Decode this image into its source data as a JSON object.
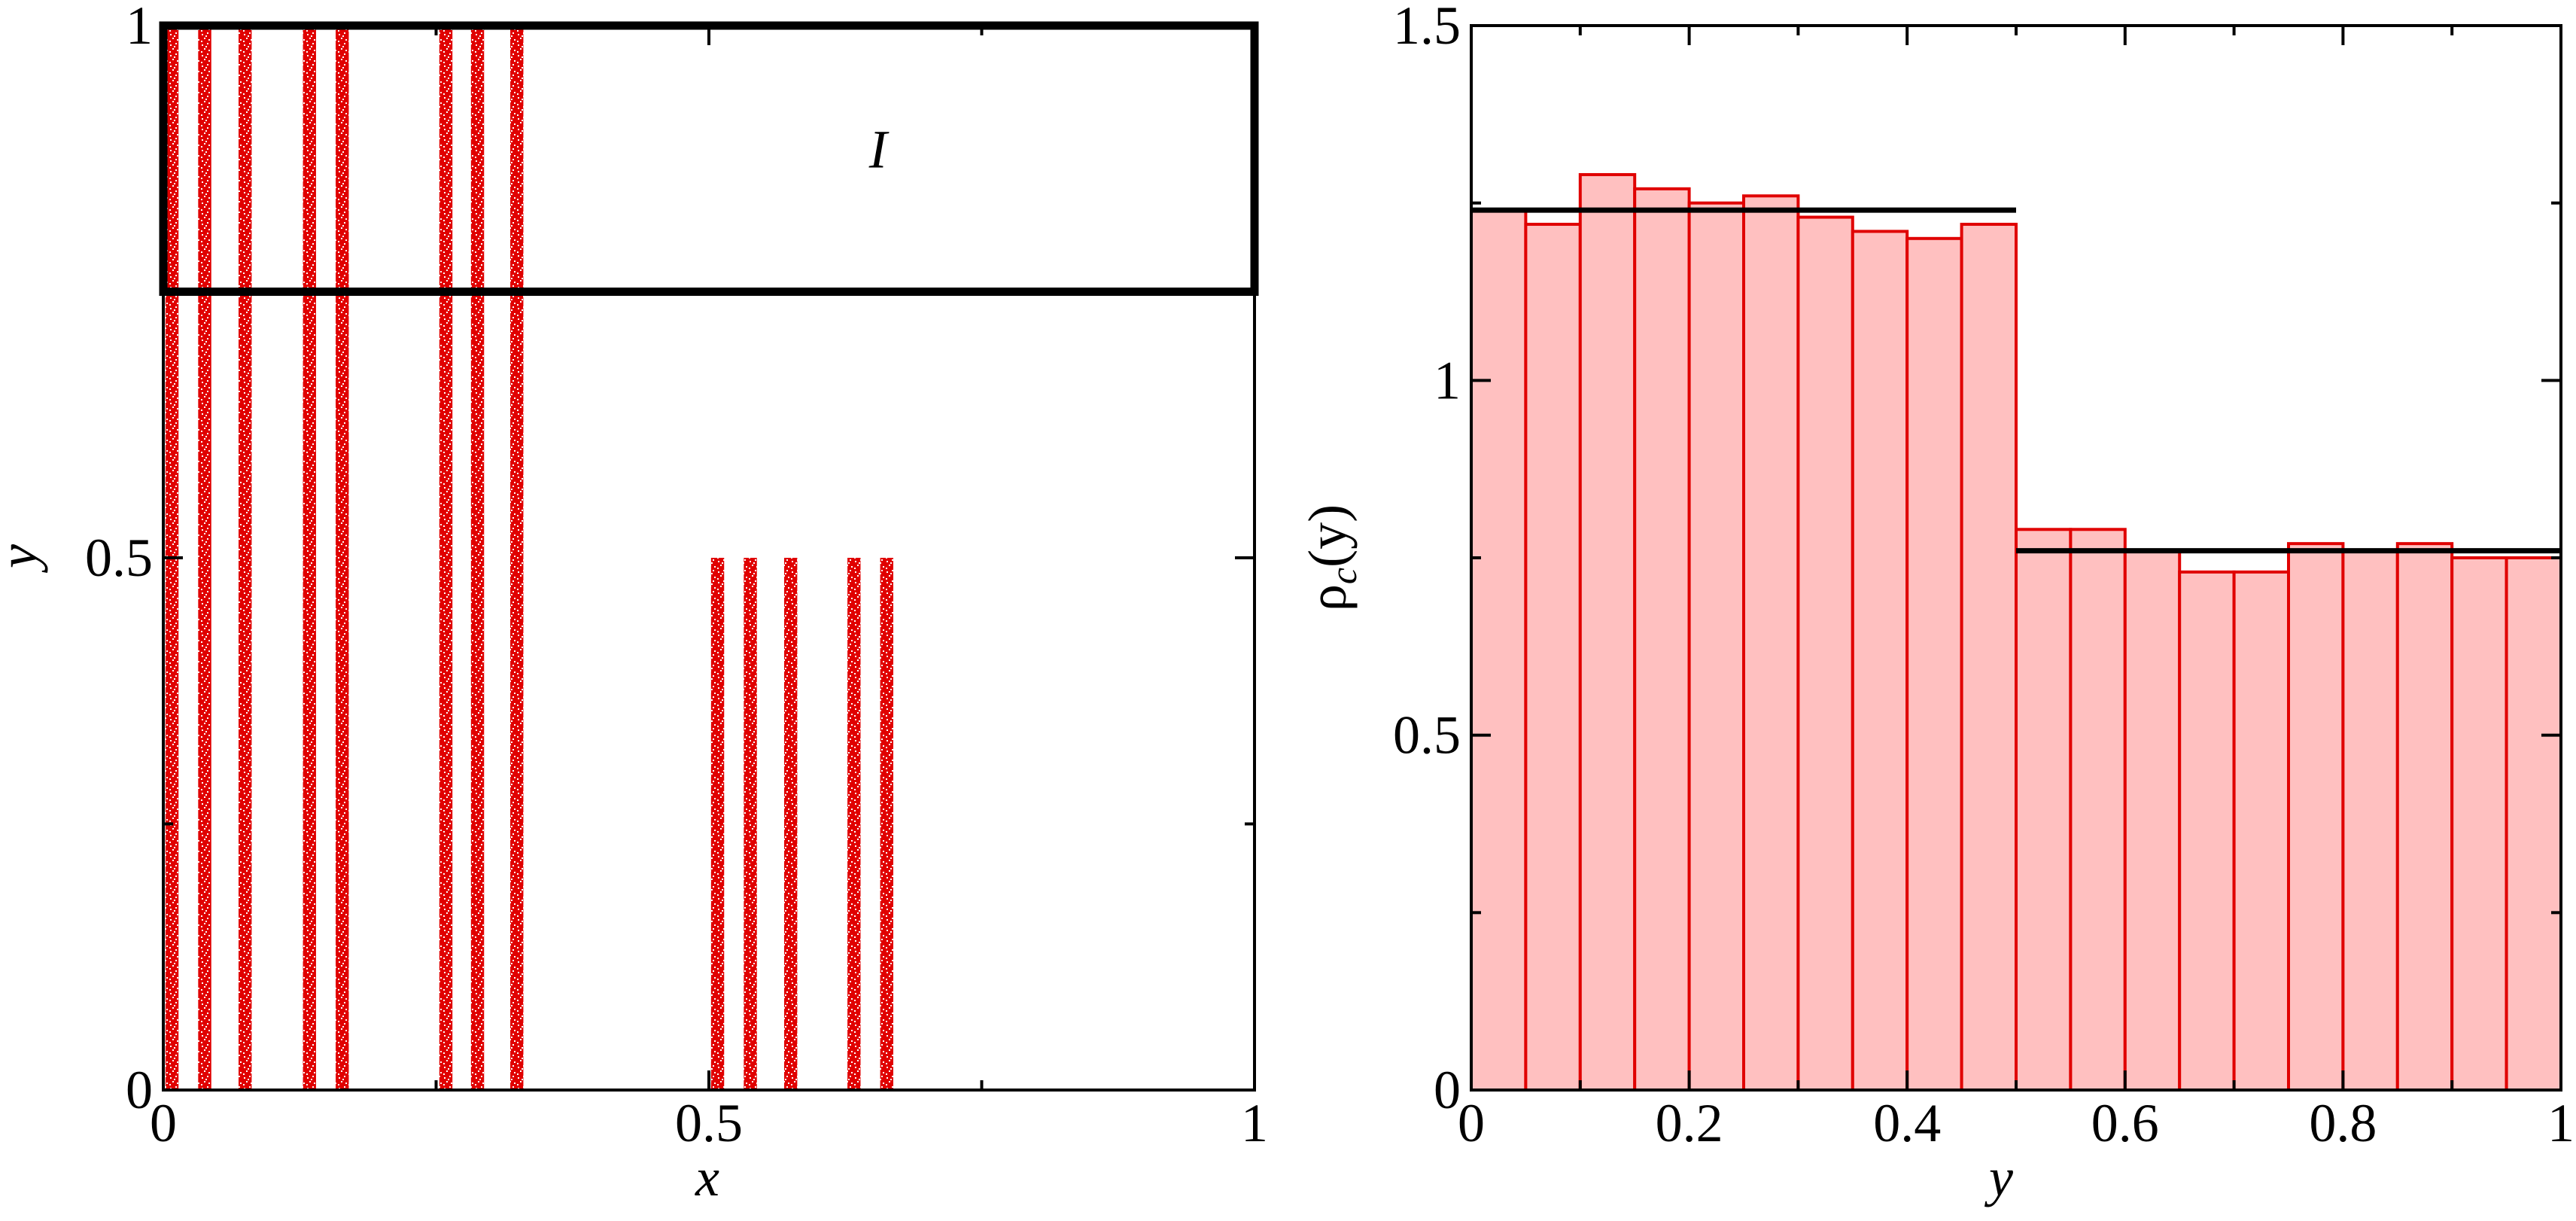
{
  "chart_data": [
    {
      "type": "scatter",
      "xlabel": "x",
      "ylabel": "y",
      "xlim": [
        0,
        1
      ],
      "ylim": [
        0,
        1
      ],
      "x_ticks": [
        "0",
        "0.5",
        "1"
      ],
      "y_ticks": [
        "0",
        "0.5",
        "1"
      ],
      "point_color": "#e00000",
      "stripe_width": 0.012,
      "stripes": [
        {
          "x": 0.007,
          "y_range": [
            0,
            1
          ]
        },
        {
          "x": 0.037,
          "y_range": [
            0,
            1
          ]
        },
        {
          "x": 0.074,
          "y_range": [
            0,
            1
          ]
        },
        {
          "x": 0.133,
          "y_range": [
            0,
            1
          ]
        },
        {
          "x": 0.163,
          "y_range": [
            0,
            1
          ]
        },
        {
          "x": 0.258,
          "y_range": [
            0,
            1
          ]
        },
        {
          "x": 0.287,
          "y_range": [
            0,
            1
          ]
        },
        {
          "x": 0.323,
          "y_range": [
            0,
            1
          ]
        },
        {
          "x": 0.507,
          "y_range": [
            0,
            0.5
          ]
        },
        {
          "x": 0.537,
          "y_range": [
            0,
            0.5
          ]
        },
        {
          "x": 0.574,
          "y_range": [
            0,
            0.5
          ]
        },
        {
          "x": 0.632,
          "y_range": [
            0,
            0.5
          ]
        },
        {
          "x": 0.662,
          "y_range": [
            0,
            0.5
          ]
        }
      ],
      "annotation": {
        "text": "I",
        "box": {
          "x": [
            0,
            1
          ],
          "y": [
            0.75,
            1
          ]
        },
        "label_at": {
          "x": 0.655,
          "y": 0.885
        }
      }
    },
    {
      "type": "bar",
      "xlabel": "y",
      "ylabel_main": "ρ",
      "ylabel_sub": "c",
      "ylabel_arg": "(y)",
      "xlim": [
        0,
        1
      ],
      "ylim": [
        0,
        1.5
      ],
      "x_ticks": [
        "0",
        "0.2",
        "0.4",
        "0.6",
        "0.8",
        "1"
      ],
      "y_ticks": [
        "0",
        "0.5",
        "1",
        "1.5"
      ],
      "bin_width": 0.05,
      "bin_starts": [
        0,
        0.05,
        0.1,
        0.15,
        0.2,
        0.25,
        0.3,
        0.35,
        0.4,
        0.45,
        0.5,
        0.55,
        0.6,
        0.65,
        0.7,
        0.75,
        0.8,
        0.85,
        0.9,
        0.95
      ],
      "values": [
        1.24,
        1.22,
        1.29,
        1.27,
        1.25,
        1.26,
        1.23,
        1.21,
        1.2,
        1.22,
        0.79,
        0.79,
        0.76,
        0.73,
        0.73,
        0.77,
        0.76,
        0.77,
        0.75,
        0.75
      ],
      "bar_fill": "#ffc0c0",
      "bar_edge": "#e00000",
      "reference_lines": [
        {
          "x_range": [
            0,
            0.5
          ],
          "y": 1.24
        },
        {
          "x_range": [
            0.5,
            1
          ],
          "y": 0.76
        }
      ]
    }
  ]
}
